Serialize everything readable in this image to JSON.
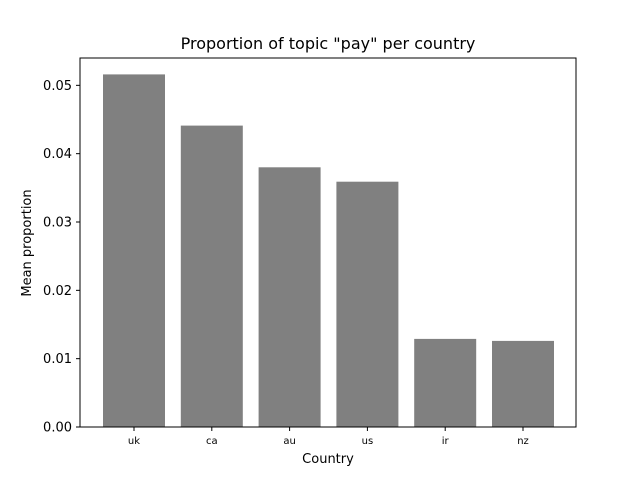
{
  "chart_data": {
    "type": "bar",
    "title": "Proportion of topic \"pay\" per country",
    "xlabel": "Country",
    "ylabel": "Mean proportion",
    "categories": [
      "uk",
      "ca",
      "au",
      "us",
      "ir",
      "nz"
    ],
    "values": [
      0.0516,
      0.0441,
      0.038,
      0.0359,
      0.0129,
      0.0126
    ],
    "ylim": [
      0,
      0.054
    ],
    "yticks": [
      0.0,
      0.01,
      0.02,
      0.03,
      0.04,
      0.05
    ],
    "ytick_labels": [
      "0.00",
      "0.01",
      "0.02",
      "0.03",
      "0.04",
      "0.05"
    ],
    "bar_color": "#808080",
    "grid": false,
    "legend": "none"
  }
}
